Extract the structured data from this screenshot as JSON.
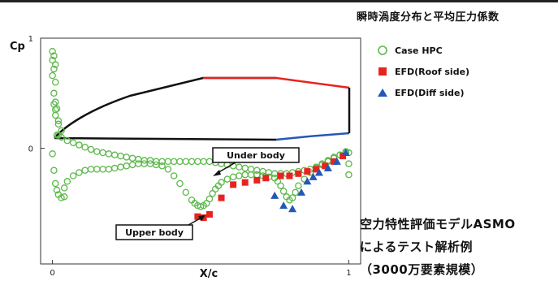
{
  "heading": "瞬時渦度分布と平均圧力係数",
  "caption": {
    "line1": "空力特性評価モデルASMO",
    "line2": "によるテスト解析例",
    "line3": "（3000万要素規模）"
  },
  "colors": {
    "case_hpc": "#5cb84a",
    "efd_roof": "#e8231f",
    "efd_diff": "#2458b8",
    "body_outline": "#111111"
  },
  "legend": [
    {
      "label": "Case HPC",
      "icon": "open-circle-icon"
    },
    {
      "label": "EFD(Roof side)",
      "icon": "filled-square-icon"
    },
    {
      "label": "EFD(Diff side)",
      "icon": "filled-triangle-icon"
    }
  ],
  "chart_data": {
    "type": "scatter",
    "ylabel": "Cp",
    "xlabel": "X/c",
    "xlim": [
      -0.04,
      1.04
    ],
    "ylim": [
      -1.05,
      1.0
    ],
    "x_ticks": [
      "0",
      "1"
    ],
    "y_ticks": [
      "1",
      "0"
    ],
    "grid": false,
    "legend_position": "right",
    "annotations": [
      {
        "text": "Under body",
        "x": 0.58,
        "y": -0.1
      },
      {
        "text": "Upper body",
        "x": 0.52,
        "y": -0.55
      }
    ],
    "series": [
      {
        "name": "Case HPC",
        "marker": "open-circle",
        "x": [
          0.0,
          0.005,
          0.0,
          0.01,
          0.005,
          0.0,
          0.01,
          0.005,
          0.01,
          0.015,
          0.01,
          0.02,
          0.015,
          0.0,
          0.005,
          0.01,
          0.015,
          0.02,
          0.03,
          0.04,
          0.005,
          0.01,
          0.02,
          0.03,
          0.02,
          0.03,
          0.05,
          0.07,
          0.09,
          0.11,
          0.13,
          0.15,
          0.17,
          0.19,
          0.21,
          0.23,
          0.25,
          0.27,
          0.29,
          0.31,
          0.33,
          0.35,
          0.37,
          0.39,
          0.41,
          0.43,
          0.45,
          0.47,
          0.49,
          0.51,
          0.53,
          0.55,
          0.57,
          0.59,
          0.61,
          0.63,
          0.65,
          0.67,
          0.69,
          0.71,
          0.73,
          0.75,
          0.77,
          0.79,
          0.81,
          0.83,
          0.85,
          0.87,
          0.89,
          0.91,
          0.93,
          0.95,
          0.97,
          0.99,
          0.04,
          0.05,
          0.07,
          0.09,
          0.11,
          0.13,
          0.15,
          0.17,
          0.19,
          0.21,
          0.23,
          0.25,
          0.27,
          0.29,
          0.31,
          0.33,
          0.35,
          0.37,
          0.39,
          0.41,
          0.43,
          0.45,
          0.47,
          0.48,
          0.49,
          0.5,
          0.51,
          0.52,
          0.53,
          0.54,
          0.55,
          0.56,
          0.57,
          0.59,
          0.61,
          0.63,
          0.65,
          0.67,
          0.69,
          0.71,
          0.73,
          0.75,
          0.76,
          0.77,
          0.78,
          0.79,
          0.8,
          0.81,
          0.82,
          0.83,
          0.85,
          0.87,
          0.89,
          0.91,
          0.93,
          0.95,
          0.97,
          0.99,
          1.0,
          1.0,
          1.0
        ],
        "y": [
          0.88,
          0.84,
          0.8,
          0.76,
          0.72,
          0.66,
          0.6,
          0.5,
          0.42,
          0.36,
          0.3,
          0.22,
          0.12,
          -0.05,
          -0.2,
          -0.32,
          -0.38,
          -0.42,
          -0.45,
          -0.44,
          0.4,
          0.35,
          0.25,
          0.16,
          0.12,
          0.1,
          0.07,
          0.05,
          0.03,
          0.01,
          -0.01,
          -0.03,
          -0.04,
          -0.05,
          -0.06,
          -0.07,
          -0.08,
          -0.09,
          -0.1,
          -0.11,
          -0.11,
          -0.12,
          -0.12,
          -0.12,
          -0.12,
          -0.12,
          -0.12,
          -0.12,
          -0.12,
          -0.12,
          -0.12,
          -0.13,
          -0.14,
          -0.15,
          -0.16,
          -0.17,
          -0.18,
          -0.19,
          -0.2,
          -0.21,
          -0.22,
          -0.23,
          -0.23,
          -0.23,
          -0.22,
          -0.21,
          -0.2,
          -0.19,
          -0.17,
          -0.14,
          -0.11,
          -0.08,
          -0.06,
          -0.04,
          -0.36,
          -0.3,
          -0.25,
          -0.22,
          -0.2,
          -0.19,
          -0.19,
          -0.19,
          -0.19,
          -0.18,
          -0.17,
          -0.16,
          -0.15,
          -0.14,
          -0.14,
          -0.14,
          -0.15,
          -0.16,
          -0.19,
          -0.25,
          -0.32,
          -0.4,
          -0.47,
          -0.5,
          -0.52,
          -0.53,
          -0.52,
          -0.5,
          -0.46,
          -0.41,
          -0.37,
          -0.34,
          -0.31,
          -0.28,
          -0.26,
          -0.25,
          -0.24,
          -0.24,
          -0.24,
          -0.25,
          -0.26,
          -0.27,
          -0.3,
          -0.34,
          -0.39,
          -0.44,
          -0.47,
          -0.45,
          -0.4,
          -0.34,
          -0.28,
          -0.22,
          -0.18,
          -0.15,
          -0.12,
          -0.09,
          -0.06,
          -0.03,
          -0.04,
          -0.14,
          -0.24
        ]
      },
      {
        "name": "EFD(Roof side)",
        "marker": "filled-square",
        "x": [
          0.49,
          0.51,
          0.53,
          0.57,
          0.61,
          0.65,
          0.69,
          0.72,
          0.77,
          0.8,
          0.83,
          0.86,
          0.89,
          0.92,
          0.95,
          0.98
        ],
        "y": [
          -0.62,
          -0.63,
          -0.6,
          -0.45,
          -0.33,
          -0.31,
          -0.29,
          -0.27,
          -0.25,
          -0.25,
          -0.23,
          -0.21,
          -0.19,
          -0.16,
          -0.12,
          -0.07
        ]
      },
      {
        "name": "EFD(Diff side)",
        "marker": "filled-triangle",
        "x": [
          0.75,
          0.78,
          0.81,
          0.84,
          0.86,
          0.88,
          0.9,
          0.93,
          0.96,
          0.99
        ],
        "y": [
          -0.43,
          -0.52,
          -0.55,
          -0.4,
          -0.3,
          -0.26,
          -0.22,
          -0.18,
          -0.12,
          -0.04
        ]
      }
    ]
  },
  "inset": {
    "description_hidden": "",
    "roof_color": "#e8231f",
    "diff_color": "#2458b8"
  }
}
